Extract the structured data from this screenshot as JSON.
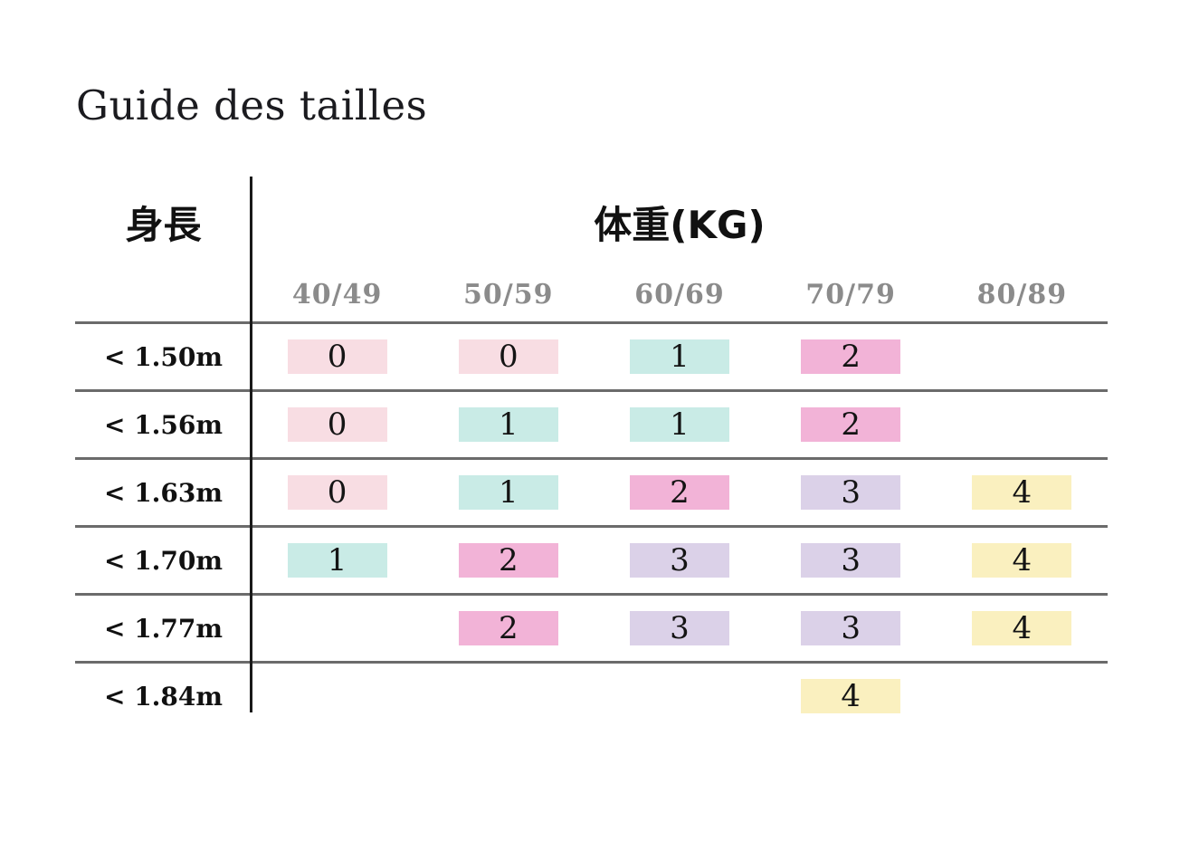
{
  "page": {
    "title": "Guide des tailles"
  },
  "table": {
    "height_header": "身長",
    "weight_header": "体重(KG)",
    "weight_columns": [
      "40/49",
      "50/59",
      "60/69",
      "70/79",
      "80/89"
    ],
    "rows": [
      {
        "height": "< 1.50m",
        "cells": [
          {
            "size": "0",
            "color": "pink"
          },
          {
            "size": "0",
            "color": "pink"
          },
          {
            "size": "1",
            "color": "teal"
          },
          {
            "size": "2",
            "color": "magenta"
          },
          {
            "size": null,
            "color": null
          }
        ]
      },
      {
        "height": "< 1.56m",
        "cells": [
          {
            "size": "0",
            "color": "pink"
          },
          {
            "size": "1",
            "color": "teal"
          },
          {
            "size": "1",
            "color": "teal"
          },
          {
            "size": "2",
            "color": "magenta"
          },
          {
            "size": null,
            "color": null
          }
        ]
      },
      {
        "height": "< 1.63m",
        "cells": [
          {
            "size": "0",
            "color": "pink"
          },
          {
            "size": "1",
            "color": "teal"
          },
          {
            "size": "2",
            "color": "magenta"
          },
          {
            "size": "3",
            "color": "lavender"
          },
          {
            "size": "4",
            "color": "yellow"
          }
        ]
      },
      {
        "height": "< 1.70m",
        "cells": [
          {
            "size": "1",
            "color": "teal"
          },
          {
            "size": "2",
            "color": "magenta"
          },
          {
            "size": "3",
            "color": "lavender"
          },
          {
            "size": "3",
            "color": "lavender"
          },
          {
            "size": "4",
            "color": "yellow"
          }
        ]
      },
      {
        "height": "< 1.77m",
        "cells": [
          {
            "size": null,
            "color": null
          },
          {
            "size": "2",
            "color": "magenta"
          },
          {
            "size": "3",
            "color": "lavender"
          },
          {
            "size": "3",
            "color": "lavender"
          },
          {
            "size": "4",
            "color": "yellow"
          }
        ]
      },
      {
        "height": "< 1.84m",
        "cells": [
          {
            "size": null,
            "color": null
          },
          {
            "size": null,
            "color": null
          },
          {
            "size": null,
            "color": null
          },
          {
            "size": "4",
            "color": "yellow"
          },
          {
            "size": null,
            "color": null
          }
        ]
      }
    ]
  },
  "colors": {
    "pink": "#f8dde3",
    "teal": "#c9ebe6",
    "magenta": "#f2b3d7",
    "lavender": "#dbd1e8",
    "yellow": "#faf0bf",
    "line_gray": "#6b6b6b",
    "header_gray": "#8b8b8b",
    "divider_black": "#1a1a1a"
  }
}
